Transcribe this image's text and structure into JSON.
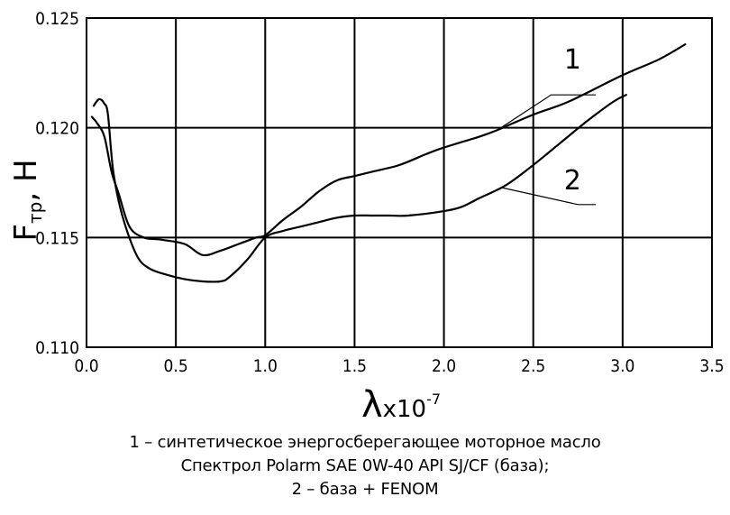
{
  "chart_data": {
    "type": "line",
    "xlabel": "λx10⁻⁷",
    "xlabel_parts": {
      "symbol": "λ",
      "mid": "x10",
      "exp": "-7"
    },
    "ylabel": "Fтр, Н",
    "ylabel_parts": {
      "main": "F",
      "sub": "тр",
      "rest": ", Н"
    },
    "xlim": [
      0.0,
      3.5
    ],
    "ylim": [
      0.11,
      0.125
    ],
    "x_ticks": [
      "0.0",
      "0.5",
      "1.0",
      "1.5",
      "2.0",
      "2.5",
      "3.0",
      "3.5"
    ],
    "y_ticks": [
      "0.110",
      "0.115",
      "0.120",
      "0.125"
    ],
    "grid": true,
    "series": [
      {
        "name": "1",
        "x": [
          0.03,
          0.06,
          0.1,
          0.14,
          0.18,
          0.24,
          0.32,
          0.42,
          0.55,
          0.65,
          0.75,
          0.85,
          0.95,
          1.0,
          1.1,
          1.2,
          1.3,
          1.4,
          1.5,
          1.6,
          1.75,
          1.9,
          2.0,
          2.2,
          2.3,
          2.5,
          2.7,
          3.0,
          3.2,
          3.35
        ],
        "y": [
          0.1205,
          0.1202,
          0.1196,
          0.118,
          0.117,
          0.1155,
          0.115,
          0.1149,
          0.1147,
          0.1142,
          0.1144,
          0.1147,
          0.115,
          0.1151,
          0.1158,
          0.1164,
          0.1171,
          0.1176,
          0.1178,
          0.118,
          0.1183,
          0.1188,
          0.1191,
          0.1196,
          0.1199,
          0.1206,
          0.1212,
          0.1224,
          0.1231,
          0.1238
        ]
      },
      {
        "name": "2",
        "x": [
          0.04,
          0.07,
          0.1,
          0.12,
          0.15,
          0.2,
          0.28,
          0.35,
          0.45,
          0.55,
          0.65,
          0.75,
          0.8,
          0.9,
          1.0,
          1.1,
          1.2,
          1.3,
          1.4,
          1.5,
          1.6,
          1.7,
          1.8,
          2.0,
          2.1,
          2.2,
          2.35,
          2.5,
          2.65,
          2.8,
          2.95,
          3.02
        ],
        "y": [
          0.121,
          0.1213,
          0.1211,
          0.1206,
          0.118,
          0.116,
          0.1142,
          0.1136,
          0.1133,
          0.1131,
          0.113,
          0.113,
          0.1132,
          0.114,
          0.115,
          0.1153,
          0.1155,
          0.1157,
          0.1159,
          0.116,
          0.116,
          0.116,
          0.116,
          0.1162,
          0.1164,
          0.1168,
          0.1174,
          0.1183,
          0.1193,
          0.1203,
          0.1212,
          0.1215
        ]
      }
    ],
    "annotations": [
      {
        "text": "1",
        "series": "1"
      },
      {
        "text": "2",
        "series": "2"
      }
    ]
  },
  "caption": {
    "line1": "1 – синтетическое энергосберегающее моторное масло",
    "line2": "Спектрол Polarm SAE 0W-40 API SJ/CF (база);",
    "line3": "2 – база + FENOM"
  }
}
